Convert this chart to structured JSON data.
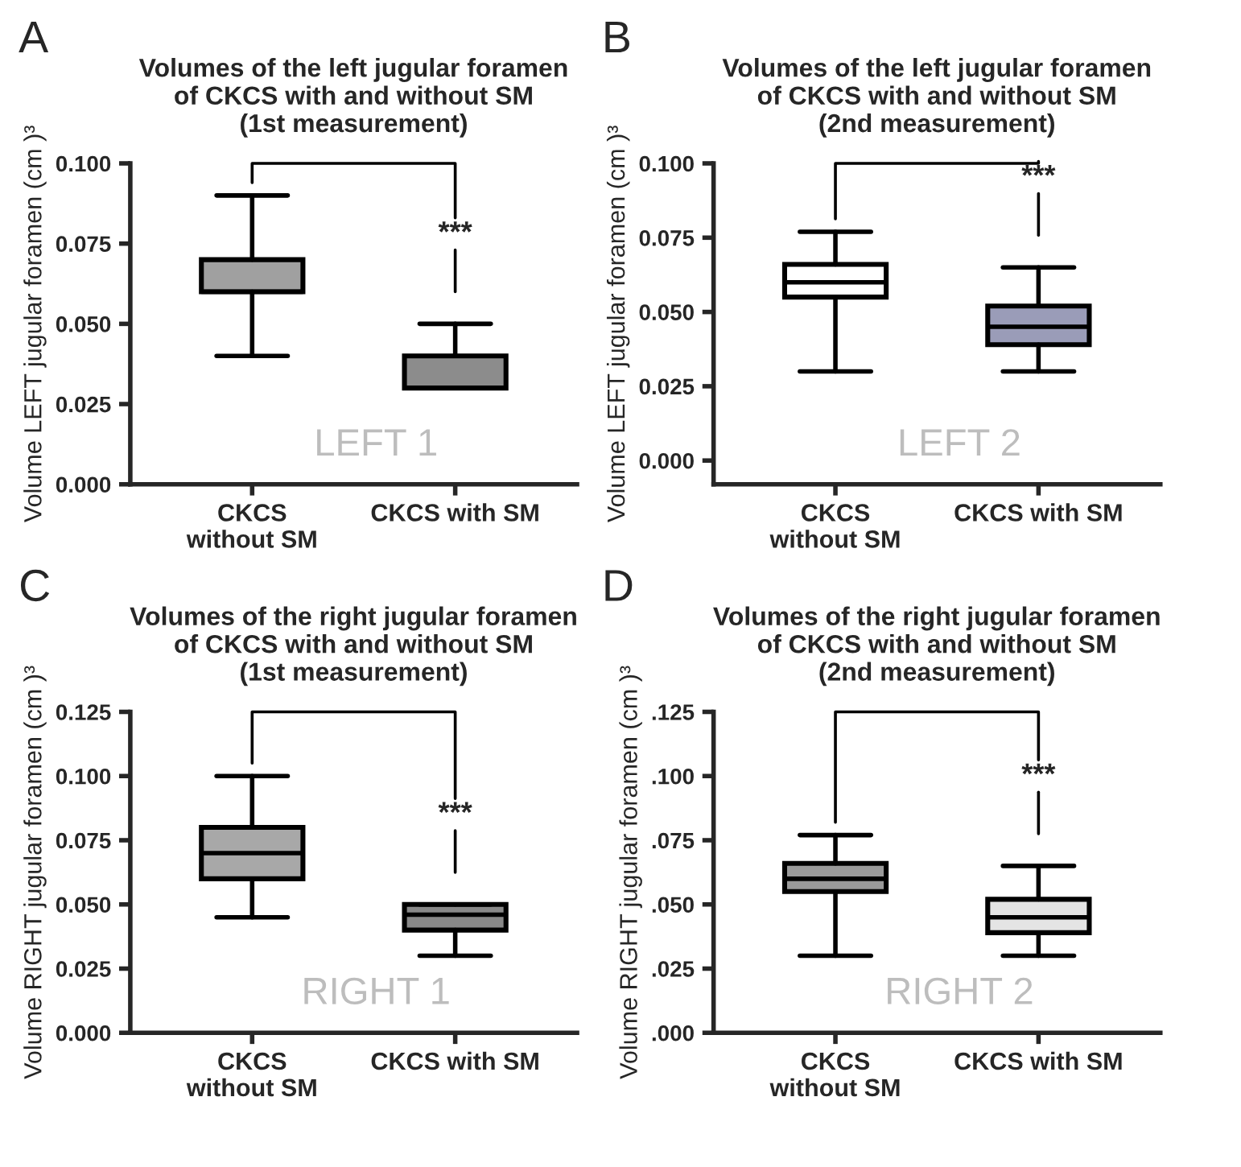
{
  "chart_data": [
    {
      "type": "box",
      "title": "Volumes of the left jugular foramen\nof CKCS with and without SM\n(1st measurement)",
      "ylabel": "Volume LEFT jugular foramen (cm )³",
      "categories": [
        "CKCS\nwithout SM",
        "CKCS with SM"
      ],
      "boxes": [
        {
          "low": 0.04,
          "q1": 0.06,
          "median": 0.06,
          "q3": 0.07,
          "high": 0.09
        },
        {
          "low": 0.03,
          "q1": 0.03,
          "median": 0.03,
          "q3": 0.04,
          "high": 0.05
        }
      ],
      "colors": [
        "#a0a0a0",
        "#8c8c8c"
      ],
      "ylim": [
        0,
        0.1
      ],
      "yticks": [
        {
          "value": 0,
          "label": "0.000"
        },
        {
          "value": 0.025,
          "label": "0.025"
        },
        {
          "value": 0.05,
          "label": "0.050"
        },
        {
          "value": 0.075,
          "label": "0.075"
        },
        {
          "value": 0.1,
          "label": "0.100"
        }
      ],
      "annotations": [
        "A",
        "LEFT 1",
        "***"
      ]
    },
    {
      "type": "box",
      "title": "Volumes of the left jugular foramen\nof CKCS with and without SM\n(2nd measurement)",
      "ylabel": "Volume LEFT jugular foramen (cm )³",
      "categories": [
        "CKCS\nwithout SM",
        "CKCS with SM"
      ],
      "boxes": [
        {
          "low": 0.03,
          "q1": 0.055,
          "median": 0.06,
          "q3": 0.066,
          "high": 0.077
        },
        {
          "low": 0.03,
          "q1": 0.039,
          "median": 0.045,
          "q3": 0.052,
          "high": 0.065
        }
      ],
      "colors": [
        "#ffffff",
        "#9a9cb8"
      ],
      "ylim": [
        -0.008,
        0.1
      ],
      "yticks": [
        {
          "value": 0,
          "label": "0.000"
        },
        {
          "value": 0.025,
          "label": "0.025"
        },
        {
          "value": 0.05,
          "label": "0.050"
        },
        {
          "value": 0.075,
          "label": "0.075"
        },
        {
          "value": 0.1,
          "label": "0.100"
        }
      ],
      "annotations": [
        "B",
        "LEFT 2",
        "***"
      ]
    },
    {
      "type": "box",
      "title": "Volumes of the right jugular foramen\nof CKCS with and without SM\n(1st measurement)",
      "ylabel": "Volume RIGHT jugular foramen (cm )³",
      "categories": [
        "CKCS\nwithout SM",
        "CKCS with SM"
      ],
      "boxes": [
        {
          "low": 0.045,
          "q1": 0.06,
          "median": 0.07,
          "q3": 0.08,
          "high": 0.1
        },
        {
          "low": 0.03,
          "q1": 0.04,
          "median": 0.046,
          "q3": 0.05,
          "high": 0.05
        }
      ],
      "colors": [
        "#a8a8a8",
        "#888888"
      ],
      "ylim": [
        0,
        0.125
      ],
      "yticks": [
        {
          "value": 0,
          "label": "0.000"
        },
        {
          "value": 0.025,
          "label": "0.025"
        },
        {
          "value": 0.05,
          "label": "0.050"
        },
        {
          "value": 0.075,
          "label": "0.075"
        },
        {
          "value": 0.1,
          "label": "0.100"
        },
        {
          "value": 0.125,
          "label": "0.125"
        }
      ],
      "annotations": [
        "C",
        "RIGHT 1",
        "***"
      ]
    },
    {
      "type": "box",
      "title": "Volumes of the right jugular foramen\nof CKCS with and without SM\n(2nd measurement)",
      "ylabel": "Volume RIGHT jugular foramen (cm )³",
      "categories": [
        "CKCS\nwithout SM",
        "CKCS with SM"
      ],
      "boxes": [
        {
          "low": 0.03,
          "q1": 0.055,
          "median": 0.06,
          "q3": 0.066,
          "high": 0.077
        },
        {
          "low": 0.03,
          "q1": 0.039,
          "median": 0.045,
          "q3": 0.052,
          "high": 0.065
        }
      ],
      "colors": [
        "#9a9a9a",
        "#e4e4e4"
      ],
      "ylim": [
        0,
        0.125
      ],
      "yticks": [
        {
          "value": 0,
          "label": ".000"
        },
        {
          "value": 0.025,
          "label": ".025"
        },
        {
          "value": 0.05,
          "label": ".050"
        },
        {
          "value": 0.075,
          "label": ".075"
        },
        {
          "value": 0.1,
          "label": ".100"
        },
        {
          "value": 0.125,
          "label": ".125"
        }
      ],
      "annotations": [
        "D",
        "RIGHT 2",
        "***"
      ]
    }
  ]
}
